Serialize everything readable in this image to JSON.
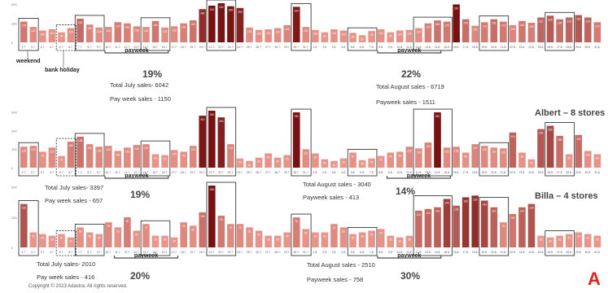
{
  "chart_data": [
    {
      "type": "bar",
      "title": "",
      "yticks": [
        0,
        100,
        200
      ],
      "ylim": [
        0,
        300
      ],
      "categories": [
        "1.7.",
        "2.7.",
        "3.7.",
        "4.7.",
        "5.7.",
        "6.7.",
        "7.7.",
        "8.7.",
        "9.7.",
        "10.7.",
        "11.7.",
        "12.7.",
        "13.7.",
        "14.7.",
        "15.7.",
        "16.7.",
        "17.7.",
        "18.7.",
        "19.7.",
        "20.7.",
        "21.7.",
        "22.7.",
        "23.7.",
        "24.7.",
        "25.7.",
        "26.7.",
        "27.7.",
        "28.7.",
        "29.7.",
        "30.7.",
        "31.7.",
        "1.8.",
        "2.8.",
        "3.8.",
        "4.8.",
        "5.8.",
        "6.8.",
        "7.8.",
        "8.8.",
        "9.8.",
        "10.8.",
        "11.8.",
        "12.8.",
        "13.8.",
        "14.8.",
        "15.8.",
        "16.8.",
        "17.8.",
        "18.8.",
        "19.8.",
        "20.8.",
        "21.8.",
        "22.8.",
        "23.8.",
        "24.8.",
        "25.8.",
        "26.8.",
        "27.8.",
        "28.8.",
        "29.8.",
        "30.8.",
        "31.8."
      ],
      "values": [
        175,
        130,
        100,
        110,
        85,
        120,
        200,
        150,
        125,
        130,
        170,
        160,
        135,
        130,
        180,
        125,
        135,
        160,
        185,
        280,
        310,
        330,
        305,
        290,
        125,
        105,
        110,
        120,
        145,
        300,
        130,
        105,
        85,
        110,
        100,
        80,
        60,
        95,
        110,
        85,
        100,
        105,
        120,
        160,
        185,
        175,
        320,
        195,
        140,
        170,
        195,
        175,
        145,
        180,
        165,
        210,
        225,
        195,
        210,
        230,
        210,
        170
      ],
      "stats": [
        "Total July sales- 6042",
        "Pay week sales - 1150",
        "19%",
        "Total August sales - 6719",
        "Payweek sales - 1511",
        "22%"
      ],
      "notes": [
        "weekend",
        "bank holiday"
      ],
      "payweek_labels": [
        "payweek",
        "payweek"
      ]
    },
    {
      "type": "bar",
      "title": "Albert – 8 stores",
      "yticks": [
        0,
        100,
        200,
        300
      ],
      "ylim": [
        0,
        420
      ],
      "categories": [
        "1.7.",
        "2.7.",
        "3.7.",
        "4.7.",
        "5.7.",
        "6.7.",
        "7.7.",
        "8.7.",
        "9.7.",
        "10.7.",
        "11.7.",
        "12.7.",
        "13.7.",
        "14.7.",
        "15.7.",
        "16.7.",
        "17.7.",
        "18.7.",
        "19.7.",
        "20.7.",
        "21.7.",
        "22.7.",
        "23.7.",
        "24.7.",
        "25.7.",
        "26.7.",
        "27.7.",
        "28.7.",
        "29.7.",
        "30.7.",
        "31.7.",
        "1.8.",
        "2.8.",
        "3.8.",
        "4.8.",
        "5.8.",
        "6.8.",
        "7.8.",
        "8.8.",
        "9.8.",
        "10.8.",
        "11.8.",
        "12.8.",
        "13.8.",
        "14.8.",
        "15.8.",
        "16.8.",
        "17.8.",
        "18.8.",
        "19.8.",
        "20.8.",
        "21.8.",
        "22.8.",
        "23.8.",
        "24.8.",
        "25.8.",
        "26.8.",
        "27.8.",
        "28.8.",
        "29.8.",
        "30.8.",
        "31.8."
      ],
      "values": [
        125,
        130,
        95,
        120,
        70,
        155,
        185,
        140,
        125,
        130,
        100,
        120,
        135,
        140,
        80,
        75,
        105,
        95,
        130,
        310,
        340,
        300,
        140,
        55,
        40,
        60,
        85,
        60,
        75,
        330,
        110,
        85,
        50,
        40,
        55,
        90,
        45,
        55,
        70,
        90,
        95,
        125,
        115,
        150,
        330,
        120,
        125,
        90,
        140,
        130,
        120,
        115,
        210,
        90,
        50,
        230,
        250,
        190,
        80,
        195,
        100,
        80
      ],
      "stats": [
        "Total July sales- 3397",
        "Pay week sales - 657",
        "19%",
        "Total August sales - 3040",
        "Payweek sales - 413",
        "14%"
      ],
      "payweek_labels": [
        "payweek",
        "payweek"
      ]
    },
    {
      "type": "bar",
      "title": "Billa – 4 stores",
      "yticks": [
        0,
        100,
        200
      ],
      "ylim": [
        0,
        200
      ],
      "categories": [
        "1.7.",
        "2.7.",
        "3.7.",
        "4.7.",
        "5.7.",
        "6.7.",
        "7.7.",
        "8.7.",
        "9.7.",
        "10.7.",
        "11.7.",
        "12.7.",
        "13.7.",
        "14.7.",
        "15.7.",
        "16.7.",
        "17.7.",
        "18.7.",
        "19.7.",
        "20.7.",
        "21.7.",
        "22.7.",
        "23.7.",
        "24.7.",
        "25.7.",
        "26.7.",
        "27.7.",
        "28.7.",
        "29.7.",
        "30.7.",
        "31.7.",
        "1.8.",
        "2.8.",
        "3.8.",
        "4.8.",
        "5.8.",
        "6.8.",
        "7.8.",
        "8.8.",
        "9.8.",
        "10.8.",
        "11.8.",
        "12.8.",
        "13.8.",
        "14.8.",
        "15.8.",
        "16.8.",
        "17.8.",
        "18.8.",
        "19.8.",
        "20.8.",
        "21.8.",
        "22.8.",
        "23.8.",
        "24.8.",
        "25.8.",
        "26.8.",
        "27.8.",
        "28.8.",
        "29.8.",
        "30.8.",
        "31.8."
      ],
      "values": [
        130,
        45,
        40,
        35,
        40,
        30,
        60,
        45,
        40,
        75,
        60,
        90,
        50,
        70,
        35,
        35,
        30,
        75,
        65,
        105,
        185,
        95,
        70,
        70,
        60,
        50,
        35,
        35,
        45,
        90,
        55,
        45,
        45,
        70,
        60,
        40,
        45,
        50,
        55,
        35,
        30,
        35,
        110,
        115,
        120,
        145,
        125,
        150,
        155,
        140,
        120,
        75,
        100,
        120,
        130,
        35,
        30,
        35,
        40,
        45,
        40,
        35
      ],
      "stats": [
        "Total July sales- 2010",
        "Pay week sales - 416",
        "20%",
        "Total August sales - 2510",
        "Payweek sales - 758",
        "30%"
      ],
      "payweek_labels": [
        "payweek",
        "payweek"
      ]
    }
  ],
  "footer": {
    "copyright": "Copyright © 2023 Adastra. All rights reserved.",
    "logo": "A"
  }
}
